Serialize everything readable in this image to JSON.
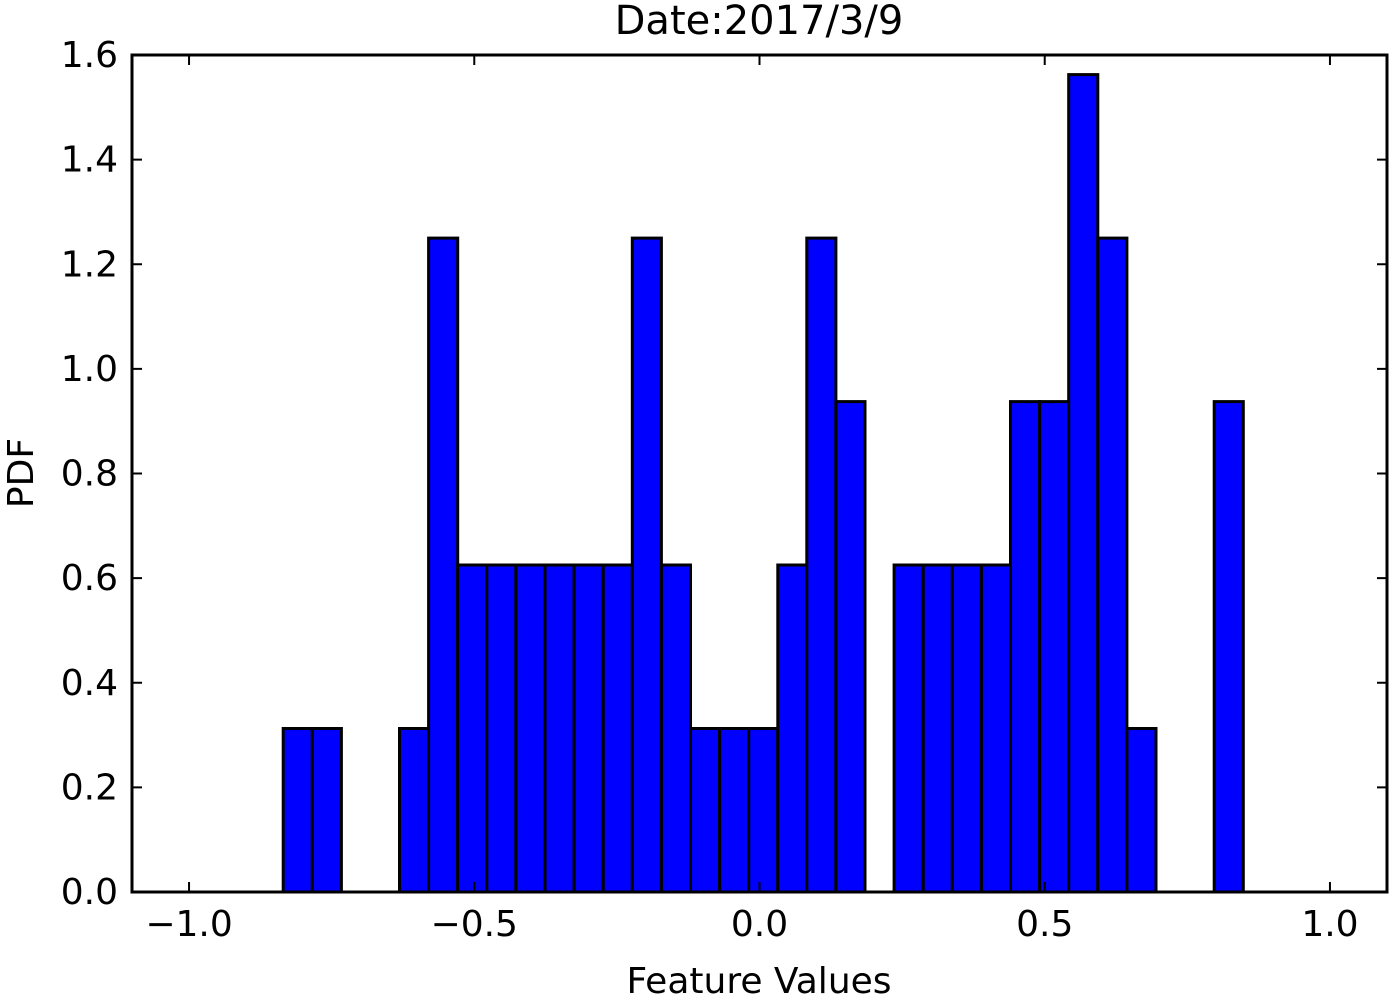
{
  "chart_data": {
    "type": "bar",
    "title": "Date:2017/3/9",
    "xlabel": "Feature Values",
    "ylabel": "PDF",
    "xlim": [
      -1.1,
      1.1
    ],
    "ylim": [
      0.0,
      1.6
    ],
    "x_ticks": [
      -1.0,
      -0.5,
      0.0,
      0.5,
      1.0
    ],
    "x_tick_labels": [
      "−1.0",
      "−0.5",
      "0.0",
      "0.5",
      "1.0"
    ],
    "y_ticks": [
      0.0,
      0.2,
      0.4,
      0.6,
      0.8,
      1.0,
      1.2,
      1.4,
      1.6
    ],
    "y_tick_labels": [
      "0.0",
      "0.2",
      "0.4",
      "0.6",
      "0.8",
      "1.0",
      "1.2",
      "1.4",
      "1.6"
    ],
    "grid": false,
    "bar_color": "#0000ff",
    "edge_color": "#000000",
    "bin_width": 0.051,
    "bins": [
      {
        "x0": -0.835,
        "value": 0.3125
      },
      {
        "x0": -0.784,
        "value": 0.3125
      },
      {
        "x0": -0.631,
        "value": 0.3125
      },
      {
        "x0": -0.58,
        "value": 1.25
      },
      {
        "x0": -0.529,
        "value": 0.625
      },
      {
        "x0": -0.478,
        "value": 0.625
      },
      {
        "x0": -0.427,
        "value": 0.625
      },
      {
        "x0": -0.376,
        "value": 0.625
      },
      {
        "x0": -0.325,
        "value": 0.625
      },
      {
        "x0": -0.274,
        "value": 0.625
      },
      {
        "x0": -0.223,
        "value": 1.25
      },
      {
        "x0": -0.172,
        "value": 0.625
      },
      {
        "x0": -0.121,
        "value": 0.3125
      },
      {
        "x0": -0.07,
        "value": 0.3125
      },
      {
        "x0": -0.019,
        "value": 0.3125
      },
      {
        "x0": 0.032,
        "value": 0.625
      },
      {
        "x0": 0.083,
        "value": 1.25
      },
      {
        "x0": 0.134,
        "value": 0.9375
      },
      {
        "x0": 0.236,
        "value": 0.625
      },
      {
        "x0": 0.287,
        "value": 0.625
      },
      {
        "x0": 0.338,
        "value": 0.625
      },
      {
        "x0": 0.389,
        "value": 0.625
      },
      {
        "x0": 0.44,
        "value": 0.9375
      },
      {
        "x0": 0.491,
        "value": 0.9375
      },
      {
        "x0": 0.542,
        "value": 1.5625
      },
      {
        "x0": 0.593,
        "value": 1.25
      },
      {
        "x0": 0.644,
        "value": 0.3125
      },
      {
        "x0": 0.797,
        "value": 0.9375
      }
    ]
  }
}
